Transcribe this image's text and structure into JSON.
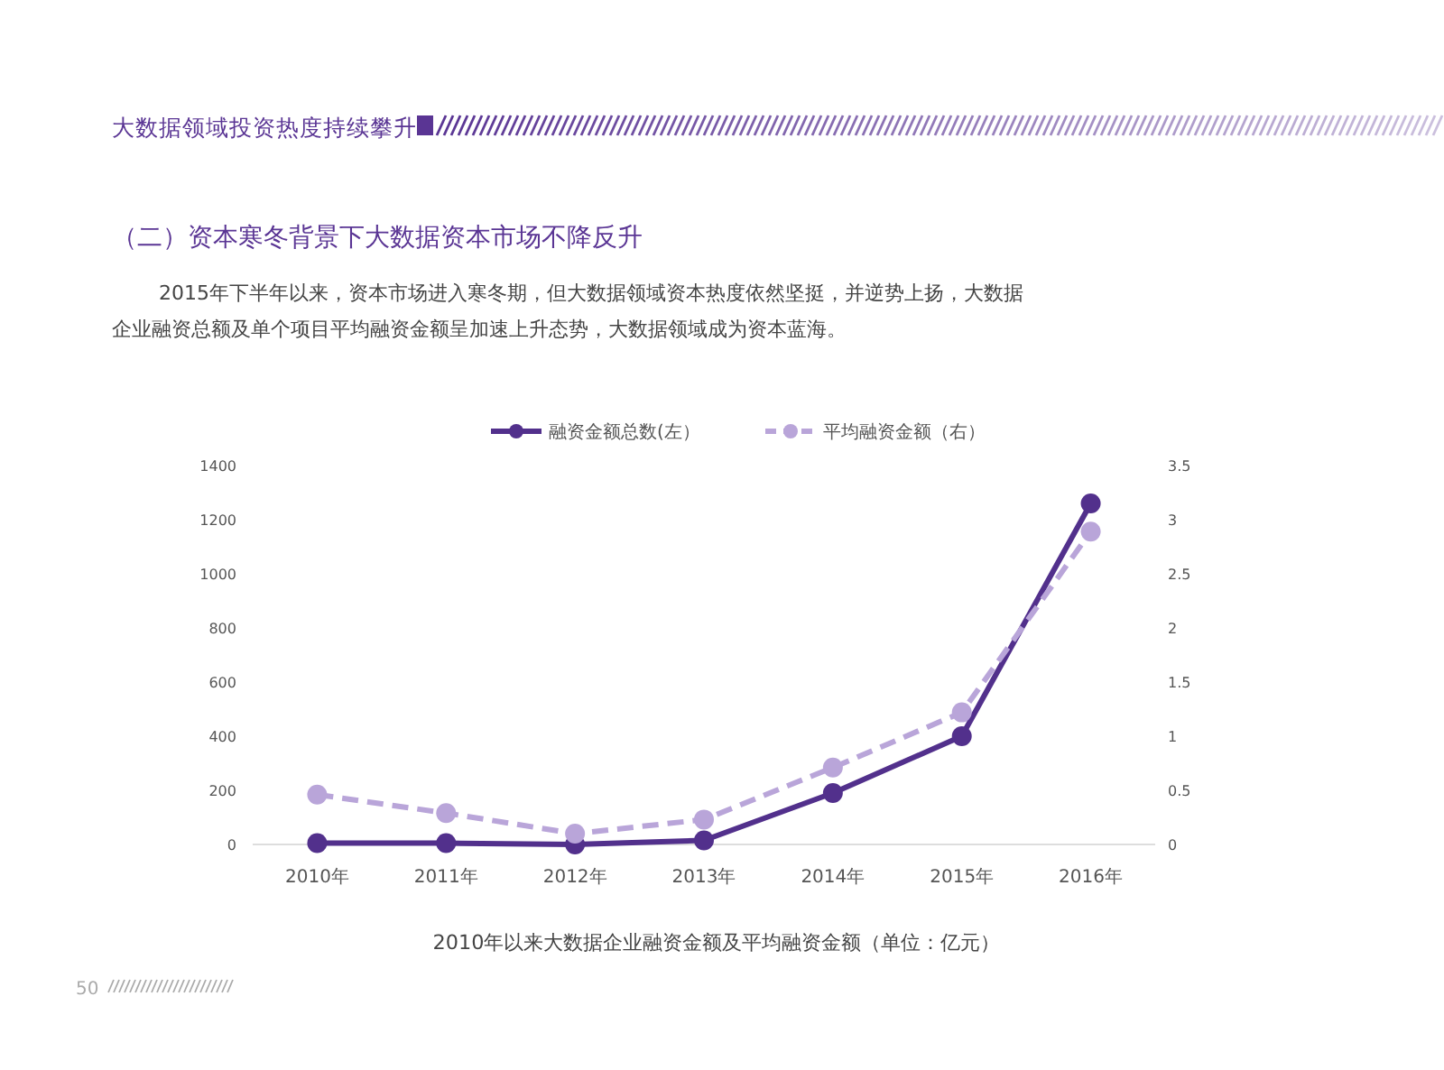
{
  "chart_data": {
    "type": "line",
    "title": "2010年以来大数据企业融资金额及平均融资金额（单位：亿元）",
    "subtitle": "（二）资本寒冬背景下大数据资本市场不降反升",
    "annotations": [
      "大数据领域投资热度持续攀升",
      "2015年下半年以来，资本市场进入寒冬期，但大数据领域资本热度依然坚挺，并逆势上扬，大数据",
      "企业融资总额及单个项目平均融资金额呈加速上升态势，大数据领域成为资本蓝海。",
      "50"
    ],
    "categories": [
      "2010年",
      "2011年",
      "2012年",
      "2013年",
      "2014年",
      "2015年",
      "2016年"
    ],
    "series": [
      {
        "name": "融资金额总数(左）",
        "color": "#52308c",
        "values": [
          5,
          5,
          0,
          15,
          190,
          400,
          1260
        ],
        "line_style": "solid"
      },
      {
        "name": "平均融资金额（右）",
        "color": "#b9a5d9",
        "values": [
          0.46,
          0.29,
          0.1,
          0.23,
          0.71,
          1.22,
          2.89
        ],
        "axis": "y2",
        "line_style": "dashed"
      }
    ],
    "ylim": [
      0,
      1400
    ],
    "yticks": [
      0,
      200,
      400,
      600,
      800,
      1000,
      1200,
      1400
    ],
    "y2lim": [
      0,
      3.5
    ],
    "y2ticks": [
      0,
      0.5,
      1,
      1.5,
      2,
      2.5,
      3,
      3.5
    ],
    "legend": "top",
    "marker": "circle"
  }
}
